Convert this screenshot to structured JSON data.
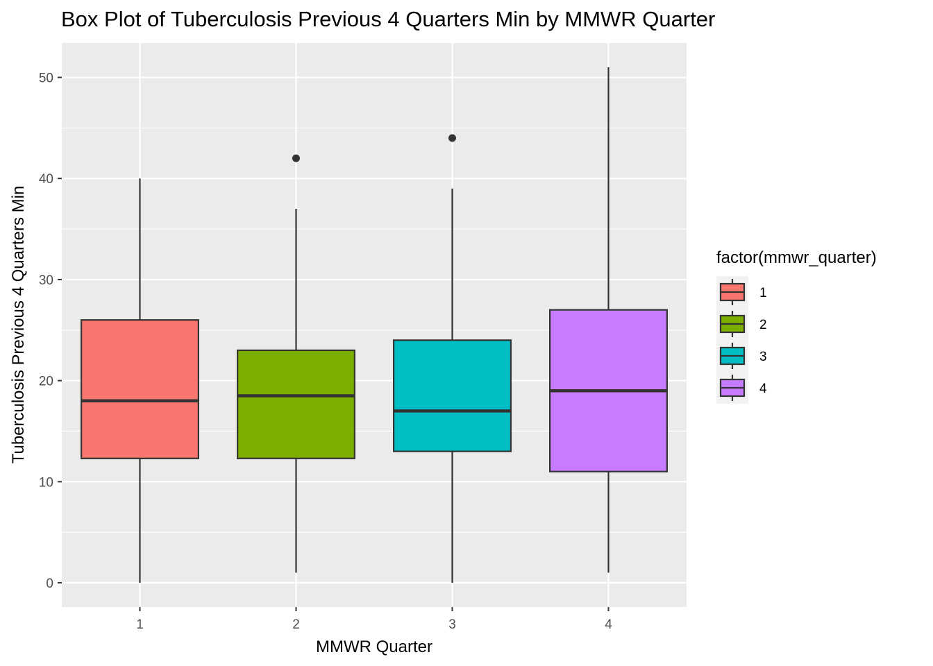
{
  "chart_data": {
    "type": "boxplot",
    "title": "Box Plot of Tuberculosis Previous 4 Quarters Min by MMWR Quarter",
    "xlabel": "MMWR Quarter",
    "ylabel": "Tuberculosis Previous 4 Quarters Min",
    "categories": [
      "1",
      "2",
      "3",
      "4"
    ],
    "ylim": [
      -2.4,
      53.4
    ],
    "y_ticks": [
      0,
      10,
      20,
      30,
      40,
      50
    ],
    "y_tick_labels": [
      "0",
      "10",
      "20",
      "30",
      "40",
      "50"
    ],
    "grid": true,
    "legend": {
      "title": "factor(mmwr_quarter)",
      "position": "right",
      "entries": [
        "1",
        "2",
        "3",
        "4"
      ]
    },
    "boxes": [
      {
        "category": "1",
        "min": 0,
        "q1": 12.3,
        "median": 18,
        "q3": 26,
        "max": 40,
        "outliers": [],
        "color": "#F8766D"
      },
      {
        "category": "2",
        "min": 1,
        "q1": 12.3,
        "median": 18.5,
        "q3": 23,
        "max": 37,
        "outliers": [
          42
        ],
        "color": "#7CAE00"
      },
      {
        "category": "3",
        "min": 0,
        "q1": 13,
        "median": 17,
        "q3": 24,
        "max": 39,
        "outliers": [
          44
        ],
        "color": "#00BFC4"
      },
      {
        "category": "4",
        "min": 1,
        "q1": 11,
        "median": 19,
        "q3": 27,
        "max": 51,
        "outliers": [],
        "color": "#C77CFF"
      }
    ],
    "panel_background": "#EBEBEB",
    "grid_color": "#FFFFFF"
  }
}
